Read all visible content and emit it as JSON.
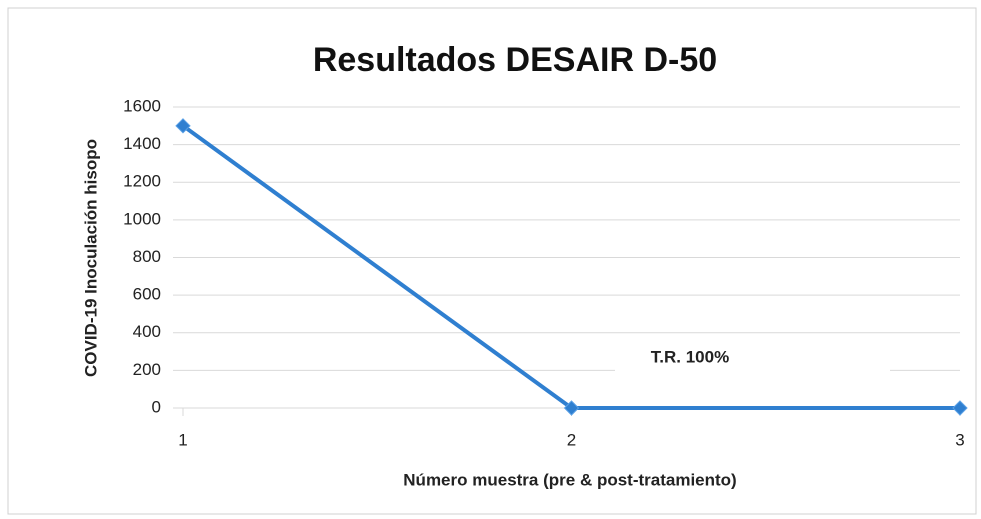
{
  "chart_data": {
    "type": "line",
    "title": "Resultados DESAIR D-50",
    "x_label": "Número muestra (pre & post-tratamiento)",
    "y_label": "COVID-19 Inoculación hisopo",
    "annotation": "T.R. 100%",
    "x": [
      1,
      2,
      3
    ],
    "series": [
      {
        "color": "#2f7fd0",
        "values": [
          1500,
          0,
          0
        ]
      }
    ],
    "xlim": [
      1,
      3
    ],
    "xticks": [
      1,
      2,
      3
    ],
    "ylim": [
      0,
      1600
    ],
    "yticks": [
      0,
      200,
      400,
      600,
      800,
      1000,
      1200,
      1400,
      1600
    ],
    "grid": true
  }
}
